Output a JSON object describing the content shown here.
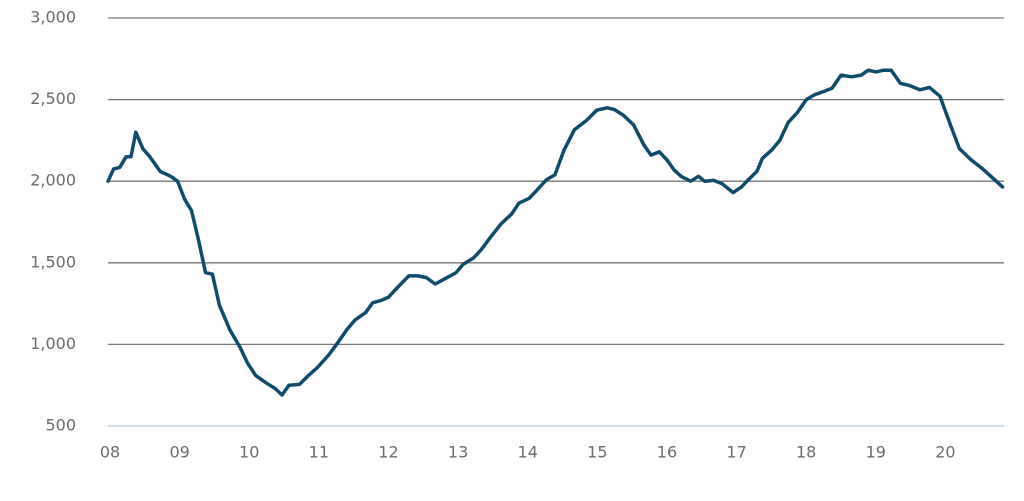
{
  "chart_data": {
    "type": "line",
    "x": [
      2008.0,
      2008.08,
      2008.17,
      2008.26,
      2008.33,
      2008.4,
      2008.5,
      2008.6,
      2008.75,
      2008.9,
      2009.0,
      2009.1,
      2009.2,
      2009.3,
      2009.4,
      2009.5,
      2009.6,
      2009.75,
      2009.9,
      2010.0,
      2010.12,
      2010.27,
      2010.4,
      2010.5,
      2010.6,
      2010.75,
      2010.88,
      2011.0,
      2011.17,
      2011.3,
      2011.43,
      2011.55,
      2011.7,
      2011.8,
      2011.93,
      2012.03,
      2012.15,
      2012.32,
      2012.45,
      2012.57,
      2012.7,
      2012.85,
      2013.0,
      2013.1,
      2013.25,
      2013.36,
      2013.5,
      2013.65,
      2013.8,
      2013.9,
      2014.05,
      2014.16,
      2014.3,
      2014.42,
      2014.55,
      2014.7,
      2014.88,
      2015.02,
      2015.17,
      2015.27,
      2015.4,
      2015.55,
      2015.7,
      2015.8,
      2015.92,
      2016.03,
      2016.13,
      2016.23,
      2016.37,
      2016.48,
      2016.57,
      2016.7,
      2016.82,
      2016.98,
      2017.1,
      2017.2,
      2017.32,
      2017.4,
      2017.53,
      2017.65,
      2017.77,
      2017.9,
      2018.03,
      2018.15,
      2018.25,
      2018.4,
      2018.53,
      2018.68,
      2018.82,
      2018.92,
      2019.03,
      2019.14,
      2019.25,
      2019.38,
      2019.52,
      2019.66,
      2019.8,
      2019.95,
      2020.1,
      2020.23,
      2020.4,
      2020.55,
      2020.85
    ],
    "series": [
      {
        "color": "#0f4c6b",
        "values": [
          2000,
          2075,
          2085,
          2150,
          2150,
          2300,
          2200,
          2150,
          2060,
          2030,
          2000,
          1890,
          1820,
          1640,
          1440,
          1430,
          1240,
          1090,
          980,
          890,
          810,
          765,
          730,
          690,
          750,
          755,
          810,
          855,
          935,
          1010,
          1090,
          1150,
          1195,
          1255,
          1270,
          1290,
          1345,
          1420,
          1420,
          1410,
          1370,
          1405,
          1440,
          1490,
          1530,
          1580,
          1660,
          1740,
          1800,
          1865,
          1895,
          1945,
          2010,
          2040,
          2190,
          2315,
          2375,
          2435,
          2450,
          2440,
          2405,
          2345,
          2220,
          2160,
          2180,
          2130,
          2070,
          2030,
          2000,
          2030,
          2000,
          2005,
          1985,
          1930,
          1965,
          2010,
          2060,
          2140,
          2190,
          2250,
          2360,
          2420,
          2500,
          2530,
          2545,
          2570,
          2650,
          2640,
          2650,
          2680,
          2670,
          2680,
          2680,
          2600,
          2585,
          2560,
          2575,
          2520,
          2345,
          2200,
          2130,
          2080,
          1965
        ]
      }
    ],
    "xlim": [
      2008,
      2020.87
    ],
    "xticks": [
      {
        "value": 2008,
        "label": "08"
      },
      {
        "value": 2009,
        "label": "09"
      },
      {
        "value": 2010,
        "label": "10"
      },
      {
        "value": 2011,
        "label": "11"
      },
      {
        "value": 2012,
        "label": "12"
      },
      {
        "value": 2013,
        "label": "13"
      },
      {
        "value": 2014,
        "label": "14"
      },
      {
        "value": 2015,
        "label": "15"
      },
      {
        "value": 2016,
        "label": "16"
      },
      {
        "value": 2017,
        "label": "17"
      },
      {
        "value": 2018,
        "label": "18"
      },
      {
        "value": 2019,
        "label": "19"
      },
      {
        "value": 2020,
        "label": "20"
      }
    ],
    "ylim": [
      500,
      3000
    ],
    "yticks": [
      500,
      {
        "value": 1000,
        "label": "1,000"
      },
      {
        "value": 1500,
        "label": "1,500"
      },
      {
        "value": 2000,
        "label": "2,000"
      },
      {
        "value": 2500,
        "label": "2,500"
      },
      {
        "value": 3000,
        "label": "3,000"
      }
    ],
    "grid": true
  }
}
